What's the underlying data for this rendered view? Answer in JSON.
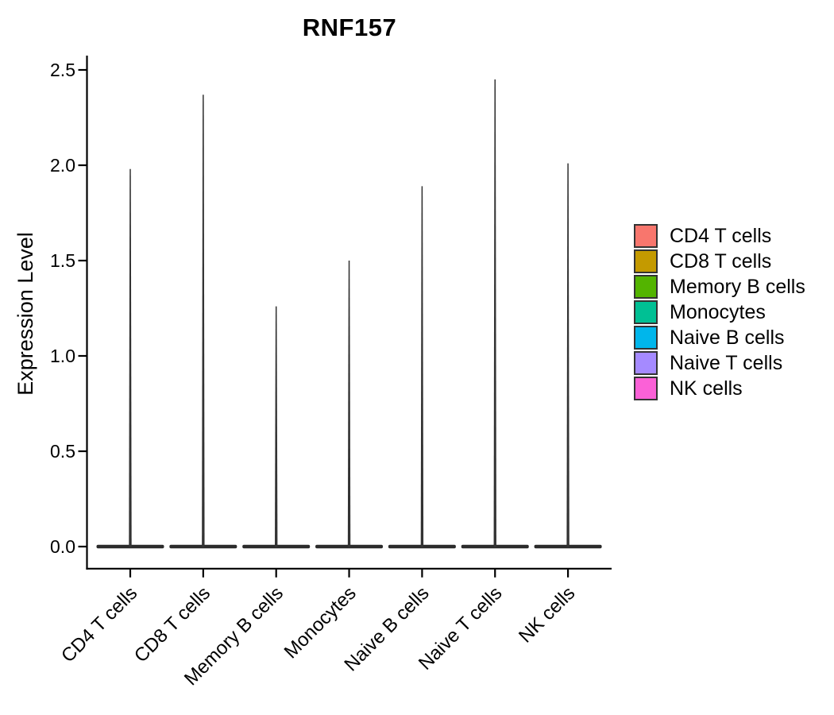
{
  "chart_data": {
    "type": "violin",
    "title": "RNF157",
    "xlabel": "",
    "ylabel": "Expression Level",
    "ylim": [
      0,
      2.5
    ],
    "yticks": [
      "0.0",
      "0.5",
      "1.0",
      "1.5",
      "2.0",
      "2.5"
    ],
    "categories": [
      "CD4 T cells",
      "CD8 T cells",
      "Memory B cells",
      "Monocytes",
      "Naive B cells",
      "Naive T cells",
      "NK cells"
    ],
    "series": [
      {
        "name": "CD4 T cells",
        "color": "#F8766D",
        "max_expression": 1.98
      },
      {
        "name": "CD8 T cells",
        "color": "#C49A00",
        "max_expression": 2.37
      },
      {
        "name": "Memory B cells",
        "color": "#53B400",
        "max_expression": 1.26
      },
      {
        "name": "Monocytes",
        "color": "#00C094",
        "max_expression": 1.5
      },
      {
        "name": "Naive B cells",
        "color": "#00B6EB",
        "max_expression": 1.89
      },
      {
        "name": "Naive T cells",
        "color": "#A58AFF",
        "max_expression": 2.45
      },
      {
        "name": "NK cells",
        "color": "#FB61D7",
        "max_expression": 2.01
      }
    ],
    "distribution_note": "almost all cells at 0: each violin is a flat wide base at 0 with a thin spike up to the maximum",
    "violin_color": "#333333",
    "violin_base_color": "#2b2b2b",
    "axis_color": "#000000",
    "grid": "off",
    "legend_position": "right",
    "legend": {
      "items": [
        {
          "label": "CD4 T cells",
          "color": "#F8766D"
        },
        {
          "label": "CD8 T cells",
          "color": "#C49A00"
        },
        {
          "label": "Memory B cells",
          "color": "#53B400"
        },
        {
          "label": "Monocytes",
          "color": "#00C094"
        },
        {
          "label": "Naive B cells",
          "color": "#00B6EB"
        },
        {
          "label": "Naive T cells",
          "color": "#A58AFF"
        },
        {
          "label": "NK cells",
          "color": "#FB61D7"
        }
      ]
    }
  }
}
